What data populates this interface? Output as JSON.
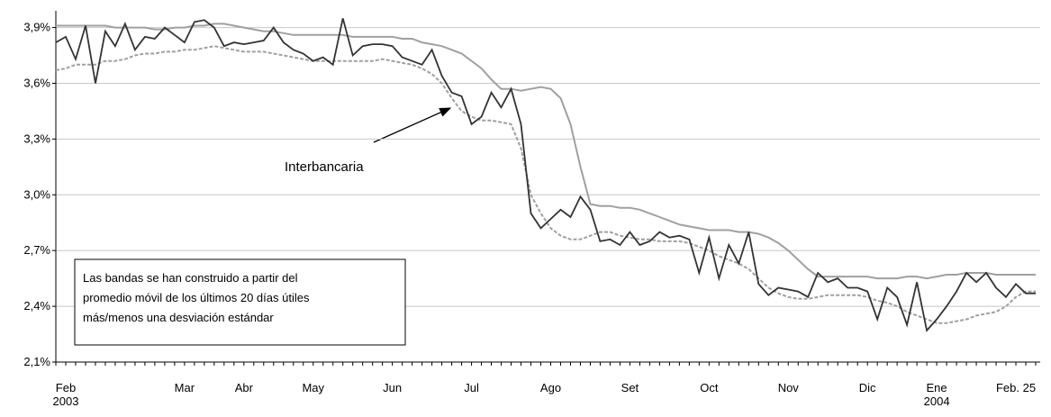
{
  "chart_data": {
    "type": "line",
    "categories": [
      null,
      "Feb\n2003",
      null,
      null,
      null,
      null,
      null,
      null,
      null,
      null,
      null,
      null,
      null,
      "Mar",
      null,
      null,
      null,
      null,
      null,
      "Abr",
      null,
      null,
      null,
      null,
      null,
      null,
      "May",
      null,
      null,
      null,
      null,
      null,
      null,
      null,
      "Jun",
      null,
      null,
      null,
      null,
      null,
      null,
      null,
      "Jul",
      null,
      null,
      null,
      null,
      null,
      null,
      null,
      "Ago",
      null,
      null,
      null,
      null,
      null,
      null,
      null,
      "Set",
      null,
      null,
      null,
      null,
      null,
      null,
      null,
      "Oct",
      null,
      null,
      null,
      null,
      null,
      null,
      null,
      "Nov",
      null,
      null,
      null,
      null,
      null,
      null,
      null,
      "Dic",
      null,
      null,
      null,
      null,
      null,
      null,
      "Ene\n2004",
      null,
      null,
      null,
      null,
      null,
      null,
      null,
      "Feb. 25",
      null,
      null
    ],
    "series": [
      {
        "name": "Interbancaria",
        "color": "#333333",
        "dash": false,
        "values": [
          3.82,
          3.85,
          3.73,
          3.91,
          3.6,
          3.88,
          3.8,
          3.92,
          3.78,
          3.85,
          3.84,
          3.9,
          3.86,
          3.82,
          3.93,
          3.94,
          3.9,
          3.8,
          3.82,
          3.81,
          3.82,
          3.83,
          3.9,
          3.82,
          3.78,
          3.76,
          3.72,
          3.74,
          3.7,
          3.95,
          3.75,
          3.8,
          3.81,
          3.81,
          3.8,
          3.74,
          3.72,
          3.7,
          3.78,
          3.64,
          3.55,
          3.53,
          3.38,
          3.42,
          3.55,
          3.47,
          3.57,
          3.38,
          2.9,
          2.82,
          2.87,
          2.92,
          2.88,
          2.99,
          2.92,
          2.75,
          2.76,
          2.73,
          2.8,
          2.73,
          2.75,
          2.8,
          2.77,
          2.78,
          2.76,
          2.58,
          2.77,
          2.55,
          2.73,
          2.63,
          2.8,
          2.52,
          2.46,
          2.5,
          2.49,
          2.48,
          2.45,
          2.58,
          2.53,
          2.55,
          2.5,
          2.5,
          2.48,
          2.33,
          2.5,
          2.45,
          2.3,
          2.53,
          2.27,
          2.33,
          2.4,
          2.48,
          2.58,
          2.53,
          2.58,
          2.5,
          2.45,
          2.52,
          2.47,
          2.47
        ]
      },
      {
        "color": "#a0a0a0",
        "dash": false,
        "values": [
          3.91,
          3.91,
          3.91,
          3.91,
          3.91,
          3.91,
          3.9,
          3.9,
          3.9,
          3.9,
          3.89,
          3.89,
          3.9,
          3.9,
          3.91,
          3.91,
          3.92,
          3.92,
          3.91,
          3.9,
          3.89,
          3.88,
          3.88,
          3.87,
          3.86,
          3.86,
          3.86,
          3.86,
          3.86,
          3.86,
          3.85,
          3.85,
          3.85,
          3.85,
          3.85,
          3.84,
          3.84,
          3.82,
          3.81,
          3.8,
          3.78,
          3.76,
          3.72,
          3.68,
          3.62,
          3.57,
          3.57,
          3.56,
          3.57,
          3.58,
          3.57,
          3.52,
          3.38,
          3.15,
          2.95,
          2.94,
          2.94,
          2.93,
          2.93,
          2.92,
          2.9,
          2.88,
          2.86,
          2.84,
          2.83,
          2.82,
          2.81,
          2.81,
          2.81,
          2.8,
          2.8,
          2.79,
          2.77,
          2.74,
          2.7,
          2.65,
          2.6,
          2.56,
          2.56,
          2.56,
          2.56,
          2.56,
          2.56,
          2.55,
          2.55,
          2.55,
          2.56,
          2.56,
          2.55,
          2.56,
          2.57,
          2.57,
          2.58,
          2.58,
          2.58,
          2.57,
          2.57,
          2.57,
          2.57,
          2.57
        ]
      },
      {
        "color": "#a0a0a0",
        "dash": true,
        "values": [
          3.67,
          3.68,
          3.7,
          3.7,
          3.7,
          3.72,
          3.72,
          3.73,
          3.75,
          3.76,
          3.76,
          3.77,
          3.77,
          3.78,
          3.78,
          3.79,
          3.8,
          3.79,
          3.78,
          3.77,
          3.77,
          3.77,
          3.76,
          3.75,
          3.74,
          3.73,
          3.72,
          3.72,
          3.72,
          3.72,
          3.72,
          3.72,
          3.72,
          3.73,
          3.72,
          3.71,
          3.7,
          3.68,
          3.65,
          3.6,
          3.52,
          3.45,
          3.42,
          3.4,
          3.4,
          3.39,
          3.38,
          3.25,
          3.0,
          2.9,
          2.82,
          2.78,
          2.76,
          2.76,
          2.78,
          2.8,
          2.8,
          2.78,
          2.77,
          2.76,
          2.76,
          2.75,
          2.75,
          2.75,
          2.74,
          2.72,
          2.7,
          2.67,
          2.65,
          2.63,
          2.6,
          2.55,
          2.5,
          2.47,
          2.45,
          2.44,
          2.44,
          2.45,
          2.46,
          2.46,
          2.46,
          2.46,
          2.45,
          2.43,
          2.42,
          2.4,
          2.37,
          2.35,
          2.33,
          2.31,
          2.31,
          2.32,
          2.33,
          2.35,
          2.36,
          2.37,
          2.4,
          2.45,
          2.48,
          2.48
        ]
      }
    ],
    "ylim": [
      2.1,
      3.99
    ],
    "yticks": [
      {
        "value": 2.1,
        "label": "2,1%"
      },
      {
        "value": 2.4,
        "label": "2,4%"
      },
      {
        "value": 2.7,
        "label": "2,7%"
      },
      {
        "value": 3.0,
        "label": "3,0%"
      },
      {
        "value": 3.3,
        "label": "3,3%"
      },
      {
        "value": 3.6,
        "label": "3,6%"
      },
      {
        "value": 3.9,
        "label": "3,9%"
      }
    ],
    "grid": true,
    "annotation": "Interbancaria",
    "note": [
      "Las bandas se han construido a partir del",
      "promedio móvil de los últimos 20 días útiles",
      "más/menos una desviación estándar"
    ]
  }
}
